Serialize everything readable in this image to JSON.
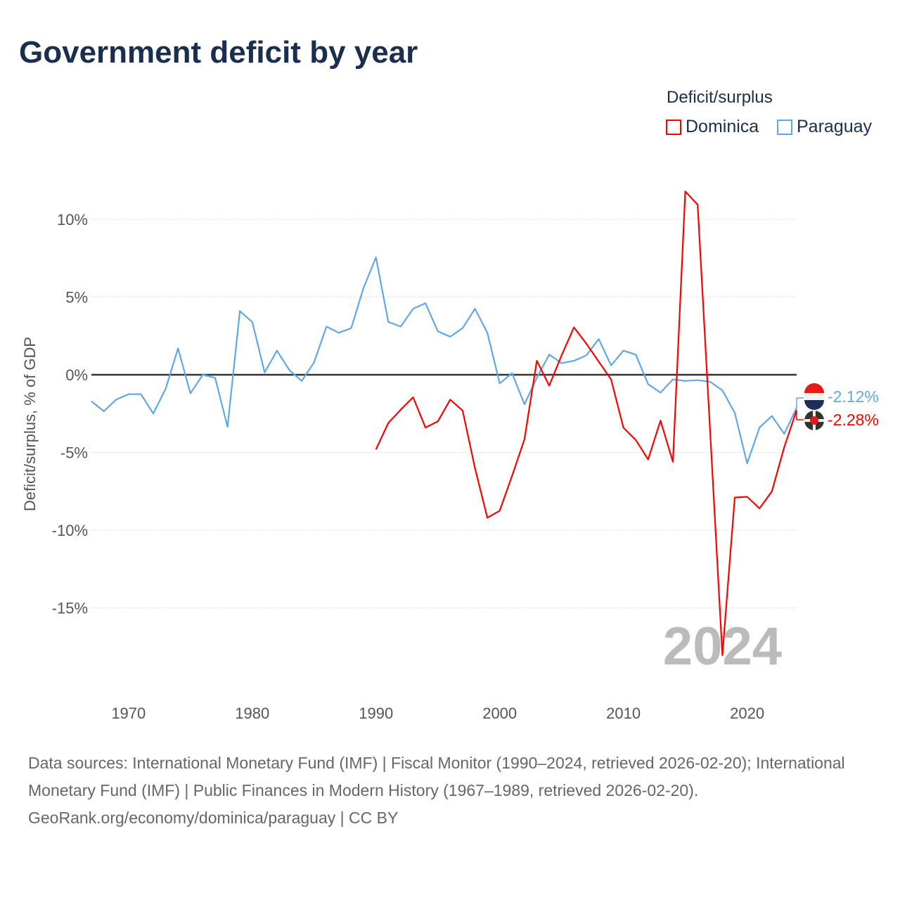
{
  "title": "Government deficit by year",
  "legend": {
    "title": "Deficit/surplus",
    "items": [
      {
        "label": "Dominica",
        "color": "#ff0000"
      },
      {
        "label": "Paraguay",
        "color": "#5fa8e8"
      }
    ]
  },
  "year_watermark": "2024",
  "end_labels": {
    "paraguay": "-2.12%",
    "dominica": "-2.28%"
  },
  "footer": {
    "sources": "Data sources: International Monetary Fund (IMF) | Fiscal Monitor (1990–2024, retrieved 2026-02-20); International Monetary Fund (IMF) | Public Finances in Modern History (1967–1989, retrieved 2026-02-20).",
    "credit": "GeoRank.org/economy/dominica/paraguay | CC BY"
  },
  "chart_data": {
    "type": "line",
    "title": "Government deficit by year",
    "xlabel": "",
    "ylabel": "Deficit/surplus, % of GDP",
    "xlim": [
      1967,
      2024
    ],
    "ylim": [
      -19,
      12.5
    ],
    "xticks": [
      1970,
      1980,
      1990,
      2000,
      2010,
      2020
    ],
    "yticks": [
      10,
      5,
      0,
      -5,
      -10,
      -15
    ],
    "ytick_labels": [
      "10%",
      "5%",
      "0%",
      "-5%",
      "-10%",
      "-15%"
    ],
    "grid": true,
    "legend_position": "top-right",
    "series": [
      {
        "name": "Paraguay",
        "color": "#5fa8e8",
        "start": 1967,
        "values": [
          -1.7,
          -2.35,
          -1.6,
          -1.25,
          -1.25,
          -2.5,
          -0.9,
          1.7,
          -1.2,
          0.0,
          -0.2,
          -3.35,
          4.1,
          3.4,
          0.15,
          1.55,
          0.3,
          -0.4,
          0.8,
          3.1,
          2.7,
          3.0,
          5.6,
          7.55,
          3.4,
          3.1,
          4.25,
          4.6,
          2.8,
          2.45,
          3.0,
          4.25,
          2.7,
          -0.55,
          0.1,
          -1.9,
          -0.2,
          1.3,
          0.75,
          0.9,
          1.25,
          2.3,
          0.6,
          1.55,
          1.3,
          -0.6,
          -1.15,
          -0.3,
          -0.4,
          -0.35,
          -0.45,
          -1.0,
          -2.45,
          -5.7,
          -3.4,
          -2.65,
          -3.8,
          -2.12
        ]
      },
      {
        "name": "Dominica",
        "color": "#ff0000",
        "start": 1990,
        "values": [
          -4.8,
          -3.1,
          -2.25,
          -1.45,
          -3.4,
          -3.0,
          -1.6,
          -2.3,
          -6.0,
          -9.2,
          -8.75,
          -6.5,
          -4.15,
          0.9,
          -0.7,
          1.25,
          3.05,
          2.0,
          0.85,
          -0.3,
          -3.4,
          -4.2,
          -5.45,
          -2.95,
          -5.6,
          11.8,
          10.95,
          -3.5,
          -18.05,
          -7.9,
          -7.85,
          -8.6,
          -7.5,
          -4.65,
          -2.28
        ]
      }
    ]
  }
}
